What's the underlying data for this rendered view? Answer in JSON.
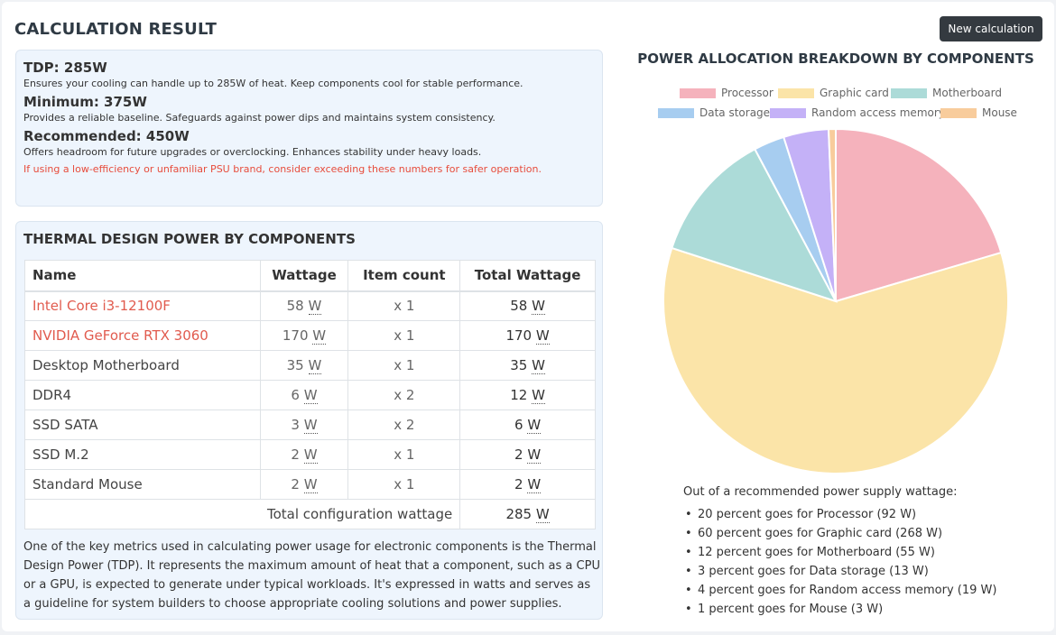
{
  "header": {
    "title": "CALCULATION RESULT",
    "new_button": "New calculation"
  },
  "result": {
    "tdp": {
      "title": "TDP: 285W",
      "desc": "Ensures your cooling can handle up to 285W of heat. Keep components cool for stable performance."
    },
    "minimum": {
      "title": "Minimum: 375W",
      "desc": "Provides a reliable baseline. Safeguards against power dips and maintains system consistency."
    },
    "recommended": {
      "title": "Recommended: 450W",
      "desc": "Offers headroom for future upgrades or overclocking. Enhances stability under heavy loads."
    },
    "warning": "If using a low-efficiency or unfamiliar PSU brand, consider exceeding these numbers for safer operation."
  },
  "tdp_section": {
    "title": "THERMAL DESIGN POWER BY COMPONENTS",
    "columns": [
      "Name",
      "Wattage",
      "Item count",
      "Total Wattage"
    ],
    "unit": "W",
    "rows": [
      {
        "name": "Intel Core i3-12100F",
        "wattage": "58",
        "count": "x 1",
        "total": "58"
      },
      {
        "name": "NVIDIA GeForce RTX 3060",
        "wattage": "170",
        "count": "x 1",
        "total": "170"
      },
      {
        "name": "Desktop Motherboard",
        "wattage": "35",
        "count": "x 1",
        "total": "35"
      },
      {
        "name": "DDR4",
        "wattage": "6",
        "count": "x 2",
        "total": "12"
      },
      {
        "name": "SSD SATA",
        "wattage": "3",
        "count": "x 2",
        "total": "6"
      },
      {
        "name": "SSD M.2",
        "wattage": "2",
        "count": "x 1",
        "total": "2"
      },
      {
        "name": "Standard Mouse",
        "wattage": "2",
        "count": "x 1",
        "total": "2"
      }
    ],
    "total_label": "Total configuration wattage",
    "total_value": "285",
    "description": "One of the key metrics used in calculating power usage for electronic components is the Thermal Design Power (TDP). It represents the maximum amount of heat that a component, such as a CPU or a GPU, is expected to generate under typical workloads. It's expressed in watts and serves as a guideline for system builders to choose appropriate cooling solutions and power supplies."
  },
  "chart_data": {
    "type": "pie",
    "title": "POWER ALLOCATION BREAKDOWN BY COMPONENTS",
    "categories": [
      "Processor",
      "Graphic card",
      "Motherboard",
      "Data storage",
      "Random access memory",
      "Mouse"
    ],
    "values": [
      92,
      268,
      55,
      13,
      19,
      3
    ],
    "colors": [
      "#f5b2bc",
      "#fbe4a8",
      "#acdbd8",
      "#a7cdf0",
      "#c4b1f7",
      "#f8cc9c"
    ],
    "legend_position": "top"
  },
  "summary": {
    "title": "Out of a recommended power supply wattage:",
    "items": [
      "20 percent goes for Processor (92 W)",
      "60 percent goes for Graphic card (268 W)",
      "12 percent goes for Motherboard (55 W)",
      "3 percent goes for Data storage (13 W)",
      "4 percent goes for Random access memory (19 W)",
      "1 percent goes for Mouse (3 W)"
    ]
  }
}
